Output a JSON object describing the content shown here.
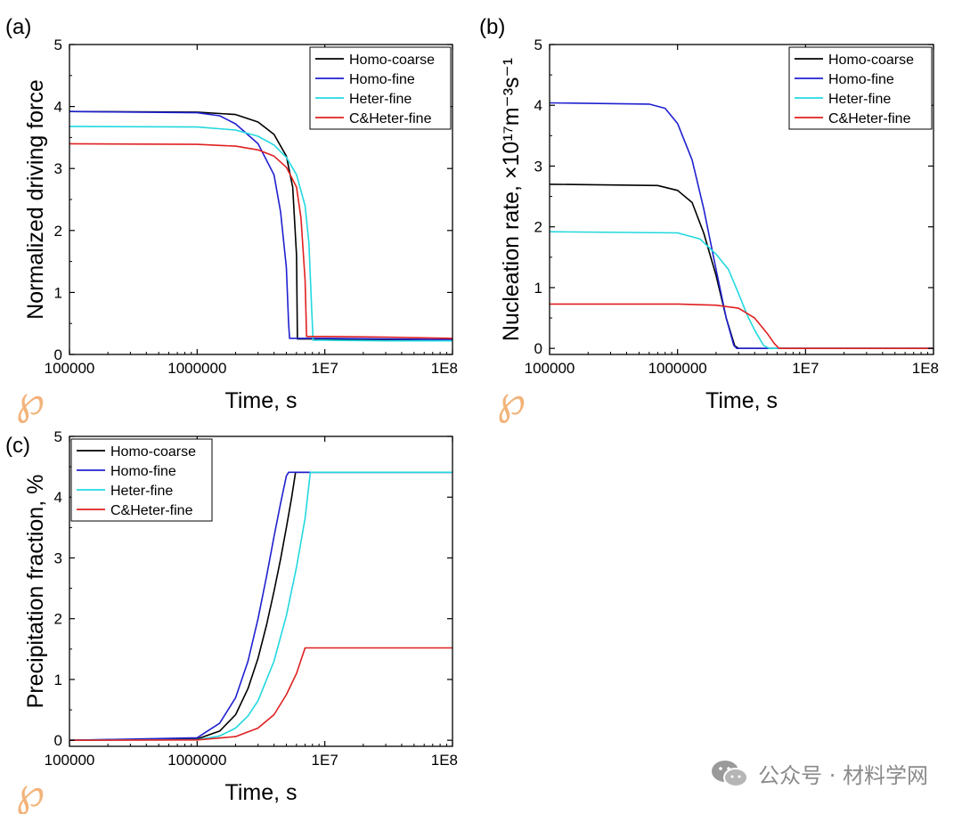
{
  "panels": [
    {
      "label": "(a)",
      "chart_data": {
        "type": "line",
        "xscale": "log",
        "xlim": [
          100000,
          100000000
        ],
        "ylim": [
          0,
          5
        ],
        "xticks": [
          "100000",
          "1000000",
          "1E7",
          "1E8"
        ],
        "yticks": [
          "0",
          "1",
          "2",
          "3",
          "4",
          "5"
        ],
        "xlabel": "Time, s",
        "ylabel": "Normalized driving force",
        "legend_position": "top-right",
        "series": [
          {
            "name": "Homo-coarse",
            "color": "#000000",
            "x": [
              100000,
              1000000,
              2000000,
              3000000,
              4000000,
              5000000,
              5600000,
              6000000,
              6100000,
              7000000,
              10000000,
              30000000,
              100000000
            ],
            "y": [
              3.92,
              3.91,
              3.87,
              3.75,
              3.55,
              3.2,
              2.7,
              1.6,
              0.25,
              0.25,
              0.25,
              0.24,
              0.24
            ]
          },
          {
            "name": "Homo-fine",
            "color": "#2020d0",
            "x": [
              100000,
              1000000,
              1500000,
              2000000,
              3000000,
              4000000,
              4500000,
              5000000,
              5200000,
              5300000,
              10000000,
              30000000,
              100000000
            ],
            "y": [
              3.92,
              3.9,
              3.85,
              3.72,
              3.4,
              2.9,
              2.3,
              1.4,
              0.5,
              0.26,
              0.26,
              0.25,
              0.24
            ]
          },
          {
            "name": "Heter-fine",
            "color": "#22d8e0",
            "x": [
              100000,
              1000000,
              2000000,
              3000000,
              4000000,
              5000000,
              6000000,
              7000000,
              7500000,
              7900000,
              8100000,
              10000000,
              30000000,
              100000000
            ],
            "y": [
              3.68,
              3.67,
              3.62,
              3.52,
              3.38,
              3.18,
              2.9,
              2.4,
              1.8,
              0.7,
              0.23,
              0.23,
              0.22,
              0.22
            ]
          },
          {
            "name": "C&Heter-fine",
            "color": "#e02020",
            "x": [
              100000,
              1000000,
              2000000,
              3000000,
              4000000,
              5000000,
              6000000,
              6500000,
              7000000,
              7200000,
              10000000,
              30000000,
              100000000
            ],
            "y": [
              3.4,
              3.39,
              3.36,
              3.3,
              3.2,
              3.02,
              2.7,
              2.2,
              1.2,
              0.29,
              0.29,
              0.28,
              0.26
            ]
          }
        ]
      }
    },
    {
      "label": "(b)",
      "chart_data": {
        "type": "line",
        "xscale": "log",
        "xlim": [
          100000,
          100000000
        ],
        "ylim": [
          -0.1,
          5
        ],
        "xticks": [
          "100000",
          "1000000",
          "1E7",
          "1E8"
        ],
        "yticks": [
          "0",
          "1",
          "2",
          "3",
          "4",
          "5"
        ],
        "xlabel": "Time, s",
        "ylabel": "Nucleation rate, ×10¹⁷m⁻³s⁻¹",
        "legend_position": "top-right",
        "series": [
          {
            "name": "Homo-coarse",
            "color": "#000000",
            "x": [
              100000,
              700000,
              1000000,
              1300000,
              1600000,
              2000000,
              2400000,
              2800000,
              3000000,
              10000000,
              100000000
            ],
            "y": [
              2.7,
              2.68,
              2.6,
              2.4,
              1.9,
              1.2,
              0.5,
              0.04,
              0,
              0,
              0
            ]
          },
          {
            "name": "Homo-fine",
            "color": "#2020d0",
            "x": [
              100000,
              600000,
              800000,
              1000000,
              1300000,
              1600000,
              2000000,
              2400000,
              2750000,
              2900000,
              10000000,
              100000000
            ],
            "y": [
              4.04,
              4.02,
              3.95,
              3.7,
              3.1,
              2.3,
              1.3,
              0.5,
              0.05,
              0,
              0,
              0
            ]
          },
          {
            "name": "Heter-fine",
            "color": "#22d8e0",
            "x": [
              100000,
              1000000,
              1500000,
              2000000,
              2500000,
              3000000,
              3500000,
              4000000,
              4700000,
              5200000,
              10000000,
              100000000
            ],
            "y": [
              1.92,
              1.9,
              1.8,
              1.55,
              1.3,
              0.9,
              0.55,
              0.3,
              0.05,
              0,
              0,
              0
            ]
          },
          {
            "name": "C&Heter-fine",
            "color": "#e02020",
            "x": [
              100000,
              1000000,
              2000000,
              3000000,
              4000000,
              5000000,
              5700000,
              6200000,
              10000000,
              100000000
            ],
            "y": [
              0.73,
              0.73,
              0.71,
              0.66,
              0.5,
              0.25,
              0.08,
              0,
              0,
              0
            ]
          }
        ]
      }
    },
    {
      "label": "(c)",
      "chart_data": {
        "type": "line",
        "xscale": "log",
        "xlim": [
          100000,
          100000000
        ],
        "ylim": [
          -0.1,
          5
        ],
        "xticks": [
          "100000",
          "1000000",
          "1E7",
          "1E8"
        ],
        "yticks": [
          "0",
          "1",
          "2",
          "3",
          "4",
          "5"
        ],
        "xlabel": "Time, s",
        "ylabel": "Precipitation fraction, %",
        "legend_position": "top-left",
        "series": [
          {
            "name": "Homo-coarse",
            "color": "#000000",
            "x": [
              100000,
              1000000,
              1500000,
              2000000,
              2500000,
              3000000,
              3500000,
              4000000,
              4500000,
              5000000,
              5500000,
              5900000,
              10000000,
              100000000
            ],
            "y": [
              0,
              0.02,
              0.15,
              0.42,
              0.85,
              1.35,
              1.9,
              2.45,
              2.98,
              3.5,
              4.0,
              4.41,
              4.41,
              4.41
            ]
          },
          {
            "name": "Homo-fine",
            "color": "#2020d0",
            "x": [
              100000,
              1000000,
              1500000,
              2000000,
              2500000,
              3000000,
              3500000,
              4000000,
              4500000,
              5000000,
              5200000,
              10000000,
              100000000
            ],
            "y": [
              0,
              0.04,
              0.28,
              0.7,
              1.3,
              2.0,
              2.7,
              3.35,
              3.9,
              4.35,
              4.41,
              4.41,
              4.41
            ]
          },
          {
            "name": "Heter-fine",
            "color": "#22d8e0",
            "x": [
              100000,
              1000000,
              1500000,
              2000000,
              2500000,
              3000000,
              4000000,
              5000000,
              6000000,
              7000000,
              7700000,
              10000000,
              100000000
            ],
            "y": [
              0,
              0.01,
              0.07,
              0.2,
              0.4,
              0.65,
              1.3,
              2.05,
              2.85,
              3.65,
              4.41,
              4.41,
              4.41
            ]
          },
          {
            "name": "C&Heter-fine",
            "color": "#e02020",
            "x": [
              100000,
              1000000,
              2000000,
              3000000,
              4000000,
              5000000,
              6000000,
              7000000,
              10000000,
              100000000
            ],
            "y": [
              0,
              0.005,
              0.06,
              0.2,
              0.42,
              0.75,
              1.1,
              1.52,
              1.52,
              1.52
            ]
          }
        ]
      }
    }
  ],
  "watermark": {
    "text": "公众号 · 材料学网"
  },
  "logo_glyph": "℘"
}
